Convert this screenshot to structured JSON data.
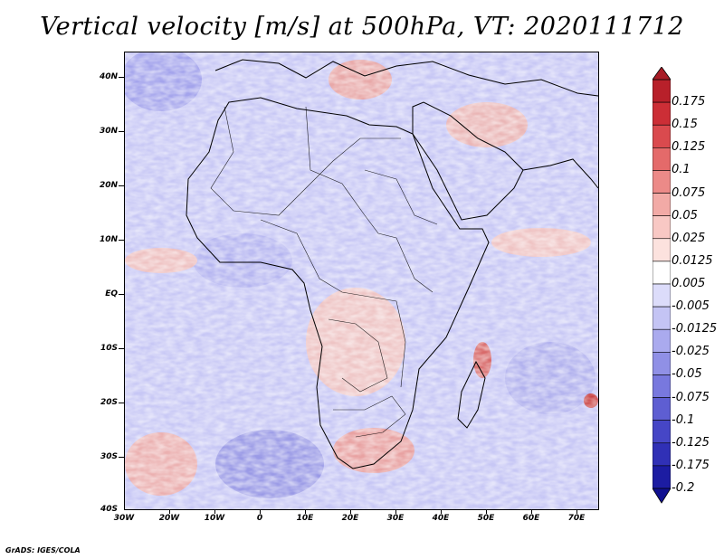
{
  "title": "Vertical velocity [m/s] at 500hPa, VT: 2020111712",
  "credit": "GrADS: IGES/COLA",
  "lat_labels": [
    "40N",
    "30N",
    "20N",
    "10N",
    "EQ",
    "10S",
    "20S",
    "30S",
    "40S"
  ],
  "lon_labels": [
    "30W",
    "20W",
    "10W",
    "0",
    "10E",
    "20E",
    "30E",
    "40E",
    "50E",
    "60E",
    "70E"
  ],
  "colorbar": {
    "labels": [
      "0.175",
      "0.15",
      "0.125",
      "0.1",
      "0.075",
      "0.05",
      "0.025",
      "0.0125",
      "0.005",
      "-0.005",
      "-0.0125",
      "-0.025",
      "-0.05",
      "-0.075",
      "-0.1",
      "-0.125",
      "-0.175",
      "-0.2"
    ],
    "colors": [
      "#b8202a",
      "#cc2e36",
      "#da4a4e",
      "#e46a6a",
      "#ec8a88",
      "#f2aaa6",
      "#f8c8c4",
      "#fce2de",
      "#ffffff",
      "#dcdcfa",
      "#c4c4f4",
      "#aaaaee",
      "#9090e6",
      "#7878de",
      "#5e5ed2",
      "#4646c6",
      "#3030b6",
      "#1c1ca2"
    ]
  }
}
